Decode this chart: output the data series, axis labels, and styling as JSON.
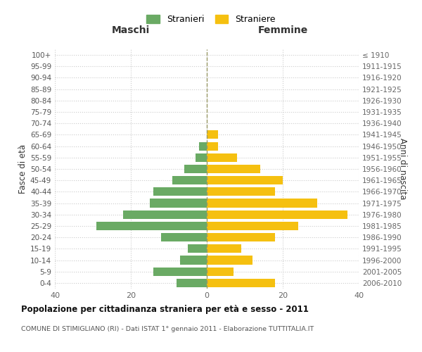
{
  "age_groups": [
    "100+",
    "95-99",
    "90-94",
    "85-89",
    "80-84",
    "75-79",
    "70-74",
    "65-69",
    "60-64",
    "55-59",
    "50-54",
    "45-49",
    "40-44",
    "35-39",
    "30-34",
    "25-29",
    "20-24",
    "15-19",
    "10-14",
    "5-9",
    "0-4"
  ],
  "birth_years": [
    "≤ 1910",
    "1911-1915",
    "1916-1920",
    "1921-1925",
    "1926-1930",
    "1931-1935",
    "1936-1940",
    "1941-1945",
    "1946-1950",
    "1951-1955",
    "1956-1960",
    "1961-1965",
    "1966-1970",
    "1971-1975",
    "1976-1980",
    "1981-1985",
    "1986-1990",
    "1991-1995",
    "1996-2000",
    "2001-2005",
    "2006-2010"
  ],
  "maschi": [
    0,
    0,
    0,
    0,
    0,
    0,
    0,
    0,
    2,
    3,
    6,
    9,
    14,
    15,
    22,
    29,
    12,
    5,
    7,
    14,
    8
  ],
  "femmine": [
    0,
    0,
    0,
    0,
    0,
    0,
    0,
    3,
    3,
    8,
    14,
    20,
    18,
    29,
    37,
    24,
    18,
    9,
    12,
    7,
    18
  ],
  "color_maschi": "#6aaa64",
  "color_femmine": "#f5c010",
  "xlim": 40,
  "title": "Popolazione per cittadinanza straniera per età e sesso - 2011",
  "subtitle": "COMUNE DI STIMIGLIANO (RI) - Dati ISTAT 1° gennaio 2011 - Elaborazione TUTTITALIA.IT",
  "ylabel_left": "Fasce di età",
  "ylabel_right": "Anni di nascita",
  "label_maschi": "Stranieri",
  "label_femmine": "Straniere",
  "header_maschi": "Maschi",
  "header_femmine": "Femmine",
  "background_color": "#ffffff",
  "grid_color": "#cccccc"
}
